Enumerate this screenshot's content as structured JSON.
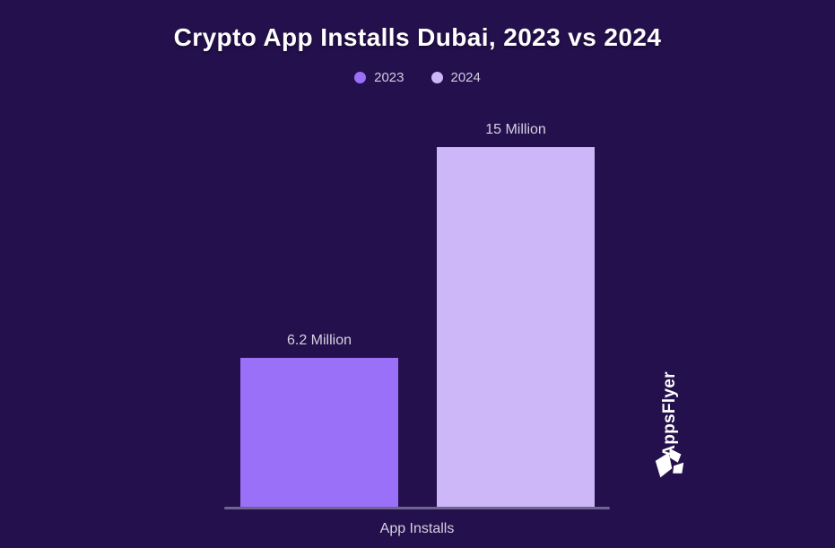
{
  "page": {
    "background_color": "#24104c"
  },
  "chart_data": {
    "type": "bar",
    "title": "Crypto App Installs Dubai, 2023 vs 2024",
    "categories": [
      "App Installs"
    ],
    "xlabel": "App Installs",
    "ylabel": "",
    "ylim": [
      0,
      15
    ],
    "grid": false,
    "legend_position": "top-center",
    "unit": "Million",
    "series": [
      {
        "name": "2023",
        "values": [
          6.2
        ],
        "data_label": "6.2 Million",
        "color": "#9b70f8"
      },
      {
        "name": "2024",
        "values": [
          15
        ],
        "data_label": "15 Million",
        "color": "#cdb7f9"
      }
    ],
    "axis_line_color": "#6f6490"
  },
  "legend": {
    "items": [
      {
        "label": "2023",
        "color": "#9b70f8"
      },
      {
        "label": "2024",
        "color": "#cdb7f9"
      }
    ]
  },
  "branding": {
    "logo_text": "AppsFlyer",
    "logo_color": "#ffffff"
  }
}
